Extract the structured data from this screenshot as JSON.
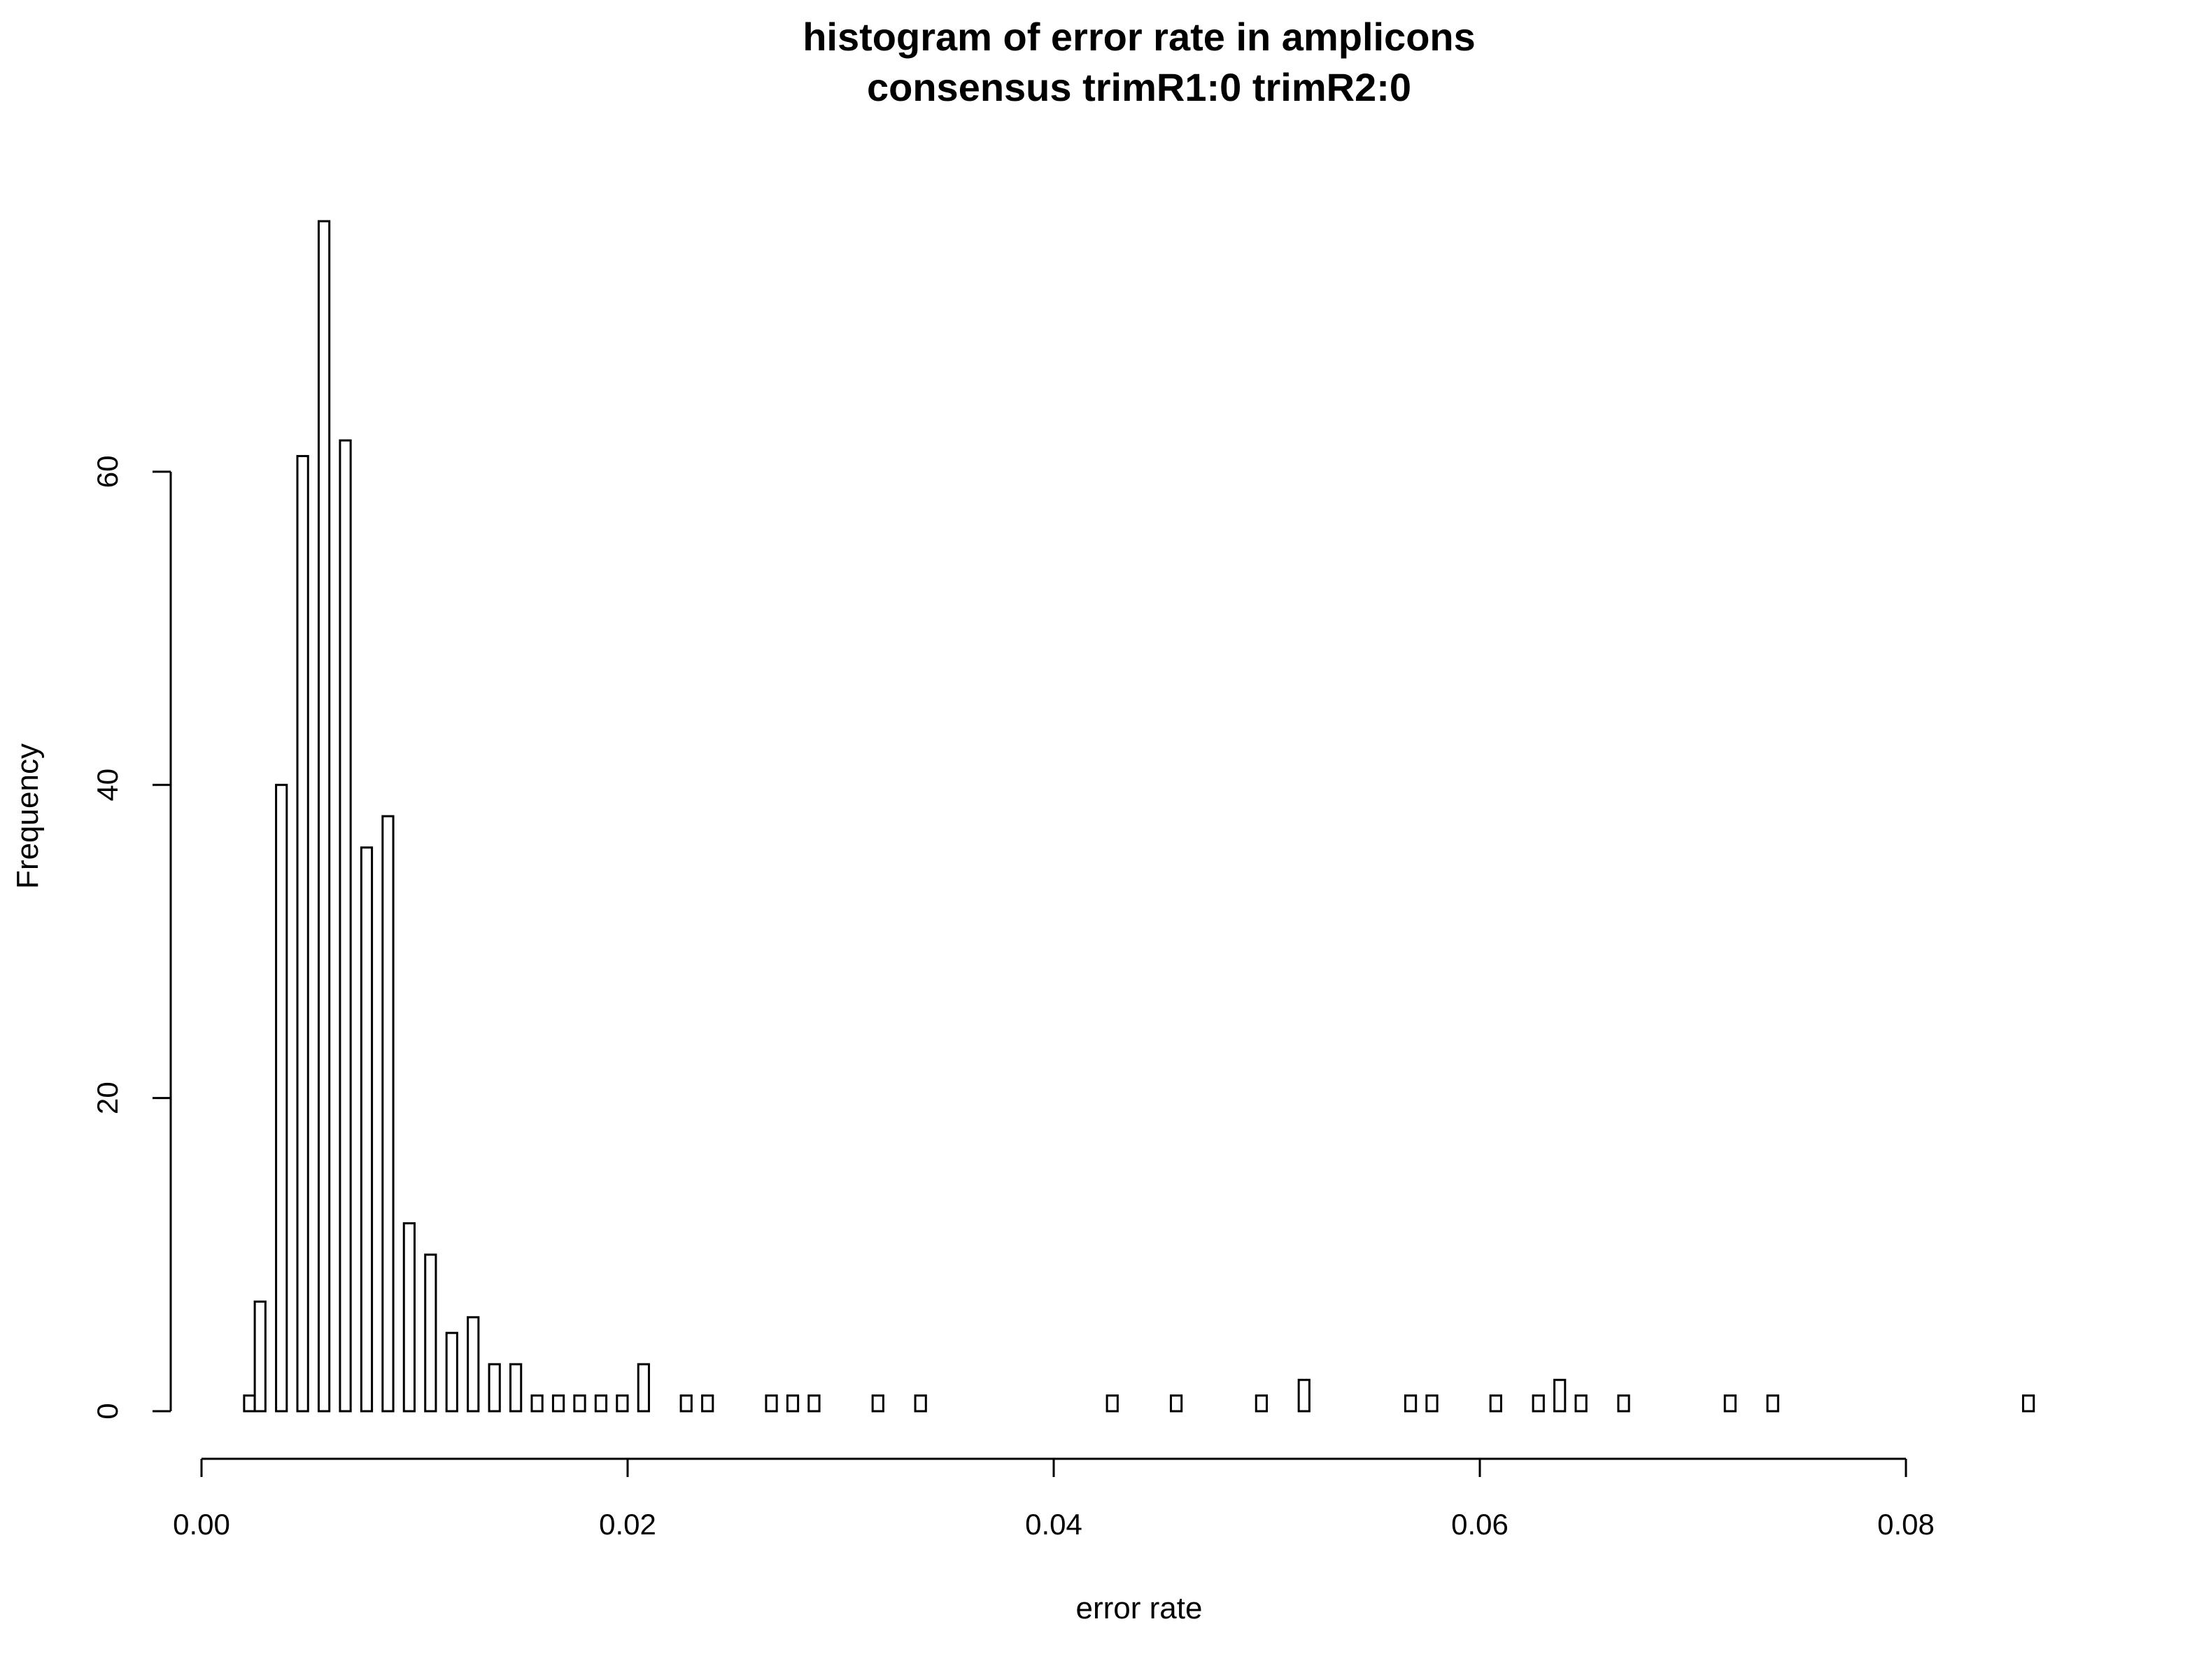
{
  "chart_data": {
    "type": "histogram",
    "title": "histogram of error rate in amplicons",
    "subtitle": "consensus trimR1:0 trimR2:0",
    "x_label": "error rate",
    "y_label": "Frequency",
    "bins": [
      0.002,
      0.0025,
      0.003,
      0.0035,
      0.004,
      0.0045,
      0.005,
      0.0055,
      0.006,
      0.0065,
      0.007,
      0.0075,
      0.008,
      0.0085,
      0.009,
      0.0095,
      0.01,
      0.0105,
      0.011,
      0.0115,
      0.012,
      0.0125,
      0.013,
      0.0135,
      0.014,
      0.0145,
      0.015,
      0.0155,
      0.016,
      0.0165,
      0.017,
      0.0175,
      0.018,
      0.0185,
      0.019,
      0.0195,
      0.02,
      0.0205,
      0.021,
      0.0215,
      0.022,
      0.0225,
      0.023,
      0.0235,
      0.024,
      0.0245,
      0.025,
      0.0255,
      0.026,
      0.0265,
      0.027,
      0.0275,
      0.028,
      0.0285,
      0.029,
      0.0295,
      0.03,
      0.0305,
      0.031,
      0.0315,
      0.032,
      0.0325,
      0.033,
      0.0335,
      0.034,
      0.0345,
      0.035,
      0.0355,
      0.036,
      0.0365,
      0.037,
      0.0375,
      0.038,
      0.0385,
      0.039,
      0.0395,
      0.04,
      0.0405,
      0.041,
      0.0415,
      0.042,
      0.0425,
      0.043,
      0.0435,
      0.044,
      0.0445,
      0.045,
      0.0455,
      0.046,
      0.0465,
      0.047,
      0.0475,
      0.048,
      0.0485,
      0.049,
      0.0495,
      0.05,
      0.0505,
      0.051,
      0.0515,
      0.052,
      0.0525,
      0.053,
      0.0535,
      0.054,
      0.0545,
      0.055,
      0.0555,
      0.056,
      0.0565,
      0.057,
      0.0575,
      0.058,
      0.0585,
      0.059,
      0.0595,
      0.06,
      0.0605,
      0.061,
      0.0615,
      0.062,
      0.0625,
      0.063,
      0.0635,
      0.064,
      0.0645,
      0.065,
      0.0655,
      0.066,
      0.0665,
      0.067,
      0.0675,
      0.068,
      0.0685,
      0.069,
      0.0695,
      0.07,
      0.0705,
      0.071,
      0.0715,
      0.072,
      0.0725,
      0.073,
      0.0735,
      0.074,
      0.0745,
      0.075,
      0.0755,
      0.076,
      0.0765,
      0.077,
      0.0775,
      0.078,
      0.0785,
      0.079,
      0.0795,
      0.08,
      0.0805,
      0.081,
      0.0815,
      0.082,
      0.0825,
      0.083,
      0.0835,
      0.084,
      0.0845,
      0.085,
      0.0855,
      0.086
    ],
    "values": [
      1,
      7,
      0,
      40,
      0,
      61,
      0,
      76,
      0,
      62,
      0,
      36,
      0,
      38,
      0,
      12,
      0,
      10,
      0,
      5,
      0,
      6,
      0,
      3,
      0,
      3,
      0,
      1,
      0,
      1,
      0,
      1,
      0,
      1,
      0,
      1,
      0,
      3,
      0,
      0,
      0,
      1,
      0,
      1,
      0,
      0,
      0,
      0,
      0,
      1,
      0,
      1,
      0,
      1,
      0,
      0,
      0,
      0,
      0,
      1,
      0,
      0,
      0,
      1,
      0,
      0,
      0,
      0,
      0,
      0,
      0,
      0,
      0,
      0,
      0,
      0,
      0,
      0,
      0,
      0,
      0,
      1,
      0,
      0,
      0,
      0,
      0,
      1,
      0,
      0,
      0,
      0,
      0,
      0,
      0,
      1,
      0,
      0,
      0,
      2,
      0,
      0,
      0,
      0,
      0,
      0,
      0,
      0,
      0,
      1,
      0,
      1,
      0,
      0,
      0,
      0,
      0,
      1,
      0,
      0,
      0,
      1,
      0,
      2,
      0,
      1,
      0,
      0,
      0,
      1,
      0,
      0,
      0,
      0,
      0,
      0,
      0,
      0,
      0,
      1,
      0,
      0,
      0,
      1,
      0,
      0,
      0,
      0,
      0,
      0,
      0,
      0,
      0,
      0,
      0,
      0,
      0,
      0,
      0,
      0,
      0,
      0,
      0,
      0,
      0,
      0,
      0,
      1
    ],
    "color": "#ffffff",
    "xlim": [
      0,
      0.08
    ],
    "xticks": [
      {
        "value": 0,
        "label": "0.00"
      },
      {
        "value": 0.02,
        "label": "0.02"
      },
      {
        "value": 0.04,
        "label": "0.04"
      },
      {
        "value": 0.06,
        "label": "0.06"
      },
      {
        "value": 0.08,
        "label": "0.08"
      }
    ],
    "ylim": [
      0,
      76
    ],
    "yticks": [
      0,
      20,
      40,
      60
    ]
  }
}
